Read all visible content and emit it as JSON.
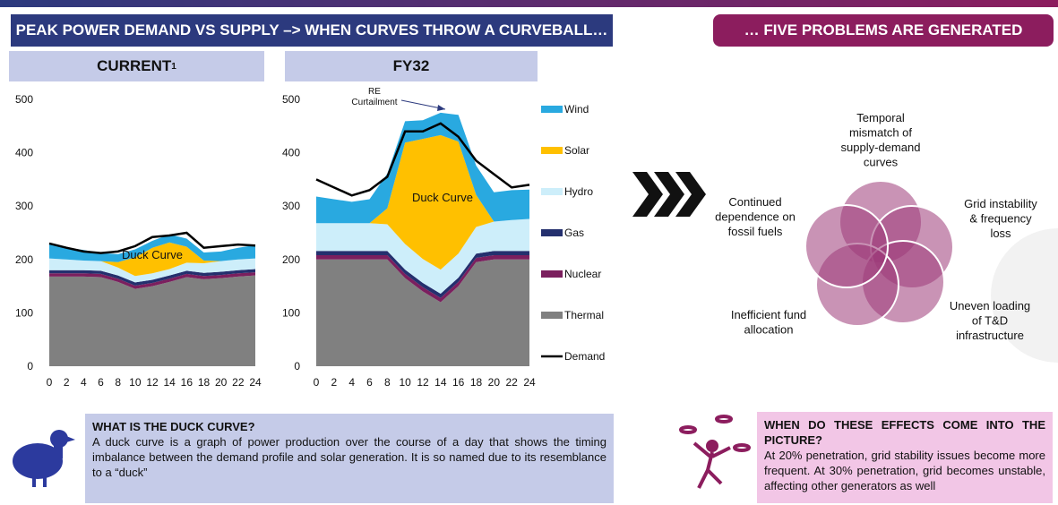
{
  "header": {
    "left": "PEAK POWER DEMAND VS SUPPLY –> WHEN CURVES THROW A CURVEBALL…",
    "right": "… FIVE PROBLEMS ARE GENERATED"
  },
  "chart_data": [
    {
      "type": "area",
      "title": "CURRENT",
      "superscript": "1",
      "x": [
        0,
        2,
        4,
        6,
        8,
        10,
        12,
        14,
        16,
        18,
        20,
        22,
        24
      ],
      "xlim": [
        0,
        24
      ],
      "xticks": [
        0,
        2,
        4,
        6,
        8,
        10,
        12,
        14,
        16,
        18,
        20,
        22,
        24
      ],
      "ylim": [
        0,
        500
      ],
      "yticks": [
        0,
        100,
        200,
        300,
        400,
        500
      ],
      "series": [
        {
          "name": "Thermal",
          "color": "#808080",
          "values": [
            168,
            168,
            168,
            167,
            158,
            145,
            150,
            158,
            167,
            163,
            165,
            168,
            170
          ]
        },
        {
          "name": "Nuclear",
          "color": "#7b1f5e",
          "values": [
            6,
            6,
            6,
            6,
            6,
            6,
            6,
            6,
            6,
            6,
            6,
            6,
            6
          ]
        },
        {
          "name": "Gas",
          "color": "#24306e",
          "values": [
            6,
            6,
            6,
            6,
            6,
            6,
            6,
            6,
            6,
            6,
            6,
            6,
            6
          ]
        },
        {
          "name": "Hydro",
          "color": "#cdeefa",
          "values": [
            22,
            20,
            18,
            18,
            15,
            12,
            12,
            12,
            15,
            18,
            20,
            20,
            20
          ]
        },
        {
          "name": "Solar",
          "color": "#ffc000",
          "values": [
            0,
            0,
            0,
            0,
            10,
            35,
            48,
            50,
            30,
            5,
            0,
            0,
            0
          ]
        },
        {
          "name": "Wind",
          "color": "#29a9e0",
          "values": [
            28,
            22,
            20,
            15,
            15,
            15,
            13,
            15,
            15,
            15,
            18,
            22,
            25
          ]
        }
      ],
      "line": {
        "name": "Demand",
        "color": "#000000",
        "values": [
          230,
          222,
          215,
          212,
          215,
          225,
          242,
          245,
          250,
          222,
          225,
          228,
          226
        ]
      },
      "annotations": [
        "Duck Curve"
      ]
    },
    {
      "type": "area",
      "title": "FY32",
      "x": [
        0,
        2,
        4,
        6,
        8,
        10,
        12,
        14,
        16,
        18,
        20,
        22,
        24
      ],
      "xlim": [
        0,
        24
      ],
      "xticks": [
        0,
        2,
        4,
        6,
        8,
        10,
        12,
        14,
        16,
        18,
        20,
        22,
        24
      ],
      "ylim": [
        0,
        500
      ],
      "yticks": [
        0,
        100,
        200,
        300,
        400,
        500
      ],
      "legend": "right",
      "series": [
        {
          "name": "Thermal",
          "color": "#808080",
          "values": [
            200,
            200,
            200,
            200,
            200,
            165,
            140,
            120,
            150,
            195,
            200,
            200,
            200
          ]
        },
        {
          "name": "Nuclear",
          "color": "#7b1f5e",
          "values": [
            8,
            8,
            8,
            8,
            8,
            8,
            8,
            8,
            8,
            8,
            8,
            8,
            8
          ]
        },
        {
          "name": "Gas",
          "color": "#24306e",
          "values": [
            8,
            8,
            8,
            8,
            8,
            8,
            8,
            8,
            8,
            8,
            8,
            8,
            8
          ]
        },
        {
          "name": "Hydro",
          "color": "#cdeefa",
          "values": [
            52,
            52,
            52,
            52,
            50,
            48,
            45,
            45,
            45,
            50,
            55,
            58,
            60
          ]
        },
        {
          "name": "Solar",
          "color": "#ffc000",
          "values": [
            0,
            0,
            0,
            0,
            30,
            190,
            225,
            252,
            210,
            60,
            0,
            0,
            0
          ]
        },
        {
          "name": "Wind",
          "color": "#29a9e0",
          "values": [
            50,
            45,
            40,
            45,
            65,
            40,
            35,
            42,
            50,
            55,
            55,
            56,
            55
          ]
        }
      ],
      "line": {
        "name": "Demand",
        "color": "#000000",
        "values": [
          350,
          335,
          320,
          330,
          355,
          440,
          440,
          455,
          430,
          385,
          360,
          335,
          340
        ]
      },
      "annotations": [
        "Duck Curve",
        [
          "RE",
          "Curtailment"
        ]
      ]
    }
  ],
  "problems": [
    [
      "Temporal",
      "mismatch of",
      "supply-demand",
      "curves"
    ],
    [
      "Grid instability",
      "& frequency",
      "loss"
    ],
    [
      "Uneven loading",
      "of T&D",
      "infrastructure"
    ],
    [
      "Inefficient fund",
      "allocation"
    ],
    [
      "Continued",
      "dependence on",
      "fossil fuels"
    ]
  ],
  "duck_box": {
    "title": "WHAT IS THE DUCK CURVE?",
    "text": "A duck curve is a graph of power production over the course of a day that shows the timing imbalance between the demand profile and solar generation. It is so named due to its resemblance to a “duck”"
  },
  "effects_box": {
    "title": "WHEN DO THESE EFFECTS COME INTO THE PICTURE?",
    "text": "At 20% penetration, grid stability issues become more frequent. At 30% penetration, grid becomes unstable, affecting other generators as well"
  }
}
